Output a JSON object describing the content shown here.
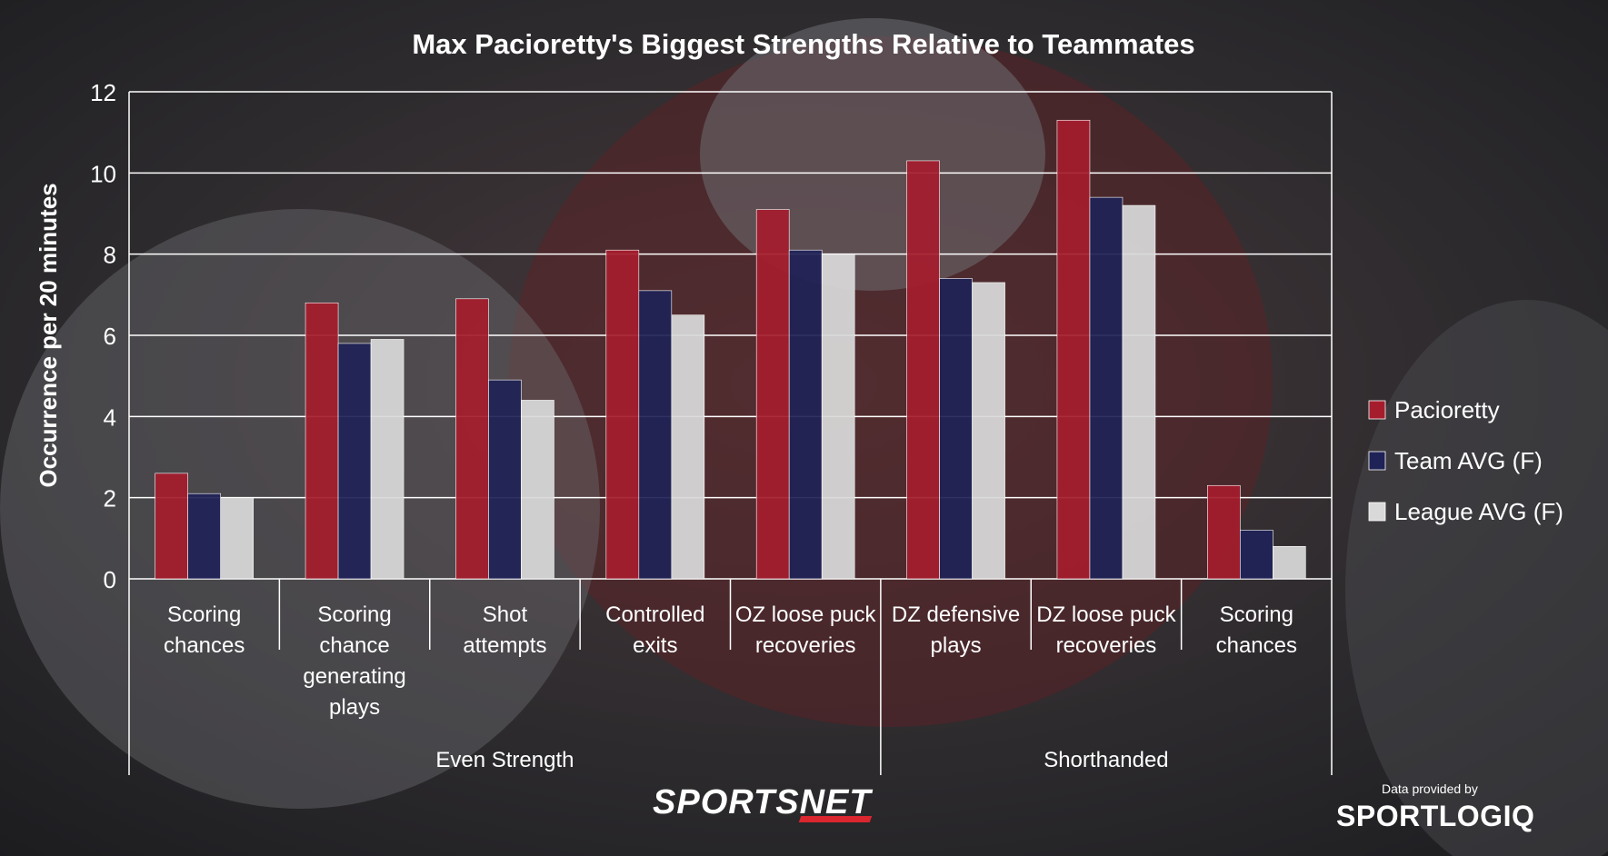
{
  "chart_data": {
    "type": "bar",
    "title": "Max Pacioretty's Biggest Strengths Relative to Teammates",
    "ylabel": "Occurrence per 20 minutes",
    "ylim": [
      0,
      12
    ],
    "yticks": [
      0,
      2,
      4,
      6,
      8,
      10,
      12
    ],
    "grid": true,
    "legend_position": "right",
    "categories": [
      [
        "Scoring",
        "chances"
      ],
      [
        "Scoring",
        "chance",
        "generating",
        "plays"
      ],
      [
        "Shot",
        "attempts"
      ],
      [
        "Controlled",
        "exits"
      ],
      [
        "OZ loose puck",
        "recoveries"
      ],
      [
        "DZ defensive",
        "plays"
      ],
      [
        "DZ loose puck",
        "recoveries"
      ],
      [
        "Scoring",
        "chances"
      ]
    ],
    "groups": [
      {
        "label": "Even Strength",
        "start": 0,
        "end": 5
      },
      {
        "label": "Shorthanded",
        "start": 5,
        "end": 8
      }
    ],
    "series": [
      {
        "name": "Pacioretty",
        "color": "#a51d2d",
        "values": [
          2.6,
          6.8,
          6.9,
          8.1,
          9.1,
          10.3,
          11.3,
          2.3
        ]
      },
      {
        "name": "Team AVG (F)",
        "color": "#1f2256",
        "values": [
          2.1,
          5.8,
          4.9,
          7.1,
          8.1,
          7.4,
          9.4,
          1.2
        ]
      },
      {
        "name": "League AVG (F)",
        "color": "#d9d9d9",
        "values": [
          2.0,
          5.9,
          4.4,
          6.5,
          8.0,
          7.3,
          9.2,
          0.8
        ]
      }
    ]
  },
  "branding": {
    "sportsnet": "SPORTSNET",
    "provided_by": "Data provided by",
    "sportlogiq": "SPORTLOGIQ"
  }
}
